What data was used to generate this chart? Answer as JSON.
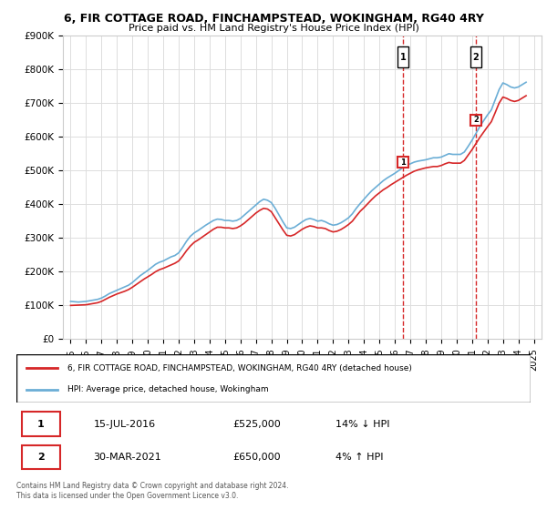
{
  "title": "6, FIR COTTAGE ROAD, FINCHAMPSTEAD, WOKINGHAM, RG40 4RY",
  "subtitle": "Price paid vs. HM Land Registry's House Price Index (HPI)",
  "hpi_color": "#6baed6",
  "price_color": "#d62728",
  "marker_color": "#d62728",
  "dashed_color": "#d62728",
  "ylim": [
    0,
    900000
  ],
  "yticks": [
    0,
    100000,
    200000,
    300000,
    400000,
    500000,
    600000,
    700000,
    800000,
    900000
  ],
  "ytick_labels": [
    "£0",
    "£100K",
    "£200K",
    "£300K",
    "£400K",
    "£500K",
    "£600K",
    "£700K",
    "£800K",
    "£900K"
  ],
  "xlim_start": 1995.0,
  "xlim_end": 2025.5,
  "xtick_years": [
    1995,
    1996,
    1997,
    1998,
    1999,
    2000,
    2001,
    2002,
    2003,
    2004,
    2005,
    2006,
    2007,
    2008,
    2009,
    2010,
    2011,
    2012,
    2013,
    2014,
    2015,
    2016,
    2017,
    2018,
    2019,
    2020,
    2021,
    2022,
    2023,
    2024,
    2025
  ],
  "transaction1_x": 2016.537,
  "transaction1_y": 525000,
  "transaction1_label": "1",
  "transaction1_date": "15-JUL-2016",
  "transaction1_price": "£525,000",
  "transaction1_hpi": "14% ↓ HPI",
  "transaction2_x": 2021.247,
  "transaction2_y": 650000,
  "transaction2_label": "2",
  "transaction2_date": "30-MAR-2021",
  "transaction2_price": "£650,000",
  "transaction2_hpi": "4% ↑ HPI",
  "legend_label_red": "6, FIR COTTAGE ROAD, FINCHAMPSTEAD, WOKINGHAM, RG40 4RY (detached house)",
  "legend_label_blue": "HPI: Average price, detached house, Wokingham",
  "footer": "Contains HM Land Registry data © Crown copyright and database right 2024.\nThis data is licensed under the Open Government Licence v3.0.",
  "hpi_data_x": [
    1995.0,
    1995.25,
    1995.5,
    1995.75,
    1996.0,
    1996.25,
    1996.5,
    1996.75,
    1997.0,
    1997.25,
    1997.5,
    1997.75,
    1998.0,
    1998.25,
    1998.5,
    1998.75,
    1999.0,
    1999.25,
    1999.5,
    1999.75,
    2000.0,
    2000.25,
    2000.5,
    2000.75,
    2001.0,
    2001.25,
    2001.5,
    2001.75,
    2002.0,
    2002.25,
    2002.5,
    2002.75,
    2003.0,
    2003.25,
    2003.5,
    2003.75,
    2004.0,
    2004.25,
    2004.5,
    2004.75,
    2005.0,
    2005.25,
    2005.5,
    2005.75,
    2006.0,
    2006.25,
    2006.5,
    2006.75,
    2007.0,
    2007.25,
    2007.5,
    2007.75,
    2008.0,
    2008.25,
    2008.5,
    2008.75,
    2009.0,
    2009.25,
    2009.5,
    2009.75,
    2010.0,
    2010.25,
    2010.5,
    2010.75,
    2011.0,
    2011.25,
    2011.5,
    2011.75,
    2012.0,
    2012.25,
    2012.5,
    2012.75,
    2013.0,
    2013.25,
    2013.5,
    2013.75,
    2014.0,
    2014.25,
    2014.5,
    2014.75,
    2015.0,
    2015.25,
    2015.5,
    2015.75,
    2016.0,
    2016.25,
    2016.5,
    2016.75,
    2017.0,
    2017.25,
    2017.5,
    2017.75,
    2018.0,
    2018.25,
    2018.5,
    2018.75,
    2019.0,
    2019.25,
    2019.5,
    2019.75,
    2020.0,
    2020.25,
    2020.5,
    2020.75,
    2021.0,
    2021.25,
    2021.5,
    2021.75,
    2022.0,
    2022.25,
    2022.5,
    2022.75,
    2023.0,
    2023.25,
    2023.5,
    2023.75,
    2024.0,
    2024.25,
    2024.5
  ],
  "hpi_data_y": [
    112000,
    111000,
    110000,
    111000,
    112000,
    114000,
    116000,
    118000,
    122000,
    128000,
    135000,
    140000,
    145000,
    150000,
    155000,
    160000,
    168000,
    178000,
    188000,
    196000,
    204000,
    213000,
    222000,
    228000,
    232000,
    238000,
    244000,
    248000,
    256000,
    272000,
    290000,
    305000,
    315000,
    322000,
    330000,
    338000,
    345000,
    352000,
    356000,
    355000,
    352000,
    352000,
    350000,
    352000,
    358000,
    368000,
    378000,
    388000,
    398000,
    408000,
    415000,
    412000,
    405000,
    388000,
    368000,
    348000,
    330000,
    328000,
    332000,
    340000,
    348000,
    355000,
    358000,
    355000,
    350000,
    352000,
    348000,
    342000,
    338000,
    340000,
    345000,
    352000,
    360000,
    372000,
    388000,
    402000,
    415000,
    428000,
    440000,
    450000,
    460000,
    470000,
    478000,
    485000,
    492000,
    500000,
    508000,
    515000,
    520000,
    525000,
    528000,
    530000,
    532000,
    535000,
    538000,
    538000,
    540000,
    545000,
    550000,
    548000,
    548000,
    548000,
    555000,
    572000,
    590000,
    610000,
    630000,
    648000,
    665000,
    680000,
    710000,
    740000,
    760000,
    755000,
    748000,
    745000,
    748000,
    755000,
    762000
  ],
  "price_data_x": [
    1995.0,
    1995.25,
    1995.5,
    1995.75,
    1996.0,
    1996.25,
    1996.5,
    1996.75,
    1997.0,
    1997.25,
    1997.5,
    1997.75,
    1998.0,
    1998.25,
    1998.5,
    1998.75,
    1999.0,
    1999.25,
    1999.5,
    1999.75,
    2000.0,
    2000.25,
    2000.5,
    2000.75,
    2001.0,
    2001.25,
    2001.5,
    2001.75,
    2002.0,
    2002.25,
    2002.5,
    2002.75,
    2003.0,
    2003.25,
    2003.5,
    2003.75,
    2004.0,
    2004.25,
    2004.5,
    2004.75,
    2005.0,
    2005.25,
    2005.5,
    2005.75,
    2006.0,
    2006.25,
    2006.5,
    2006.75,
    2007.0,
    2007.25,
    2007.5,
    2007.75,
    2008.0,
    2008.25,
    2008.5,
    2008.75,
    2009.0,
    2009.25,
    2009.5,
    2009.75,
    2010.0,
    2010.25,
    2010.5,
    2010.75,
    2011.0,
    2011.25,
    2011.5,
    2011.75,
    2012.0,
    2012.25,
    2012.5,
    2012.75,
    2013.0,
    2013.25,
    2013.5,
    2013.75,
    2014.0,
    2014.25,
    2014.5,
    2014.75,
    2015.0,
    2015.25,
    2015.5,
    2015.75,
    2016.0,
    2016.25,
    2016.5,
    2016.75,
    2017.0,
    2017.25,
    2017.5,
    2017.75,
    2018.0,
    2018.25,
    2018.5,
    2018.75,
    2019.0,
    2019.25,
    2019.5,
    2019.75,
    2020.0,
    2020.25,
    2020.5,
    2020.75,
    2021.0,
    2021.25,
    2021.5,
    2021.75,
    2022.0,
    2022.25,
    2022.5,
    2022.75,
    2023.0,
    2023.25,
    2023.5,
    2023.75,
    2024.0,
    2024.25,
    2024.5
  ],
  "price_data_y": [
    100000,
    100500,
    101000,
    101500,
    102000,
    104000,
    106000,
    108000,
    112000,
    118000,
    124000,
    129000,
    134000,
    138000,
    142000,
    147000,
    154000,
    162000,
    170000,
    178000,
    185000,
    192000,
    200000,
    206000,
    210000,
    215000,
    220000,
    225000,
    232000,
    246000,
    262000,
    276000,
    287000,
    294000,
    302000,
    310000,
    318000,
    326000,
    332000,
    332000,
    330000,
    330000,
    328000,
    330000,
    336000,
    344000,
    354000,
    364000,
    374000,
    382000,
    388000,
    386000,
    378000,
    360000,
    342000,
    324000,
    308000,
    306000,
    310000,
    318000,
    326000,
    332000,
    336000,
    334000,
    330000,
    330000,
    328000,
    322000,
    318000,
    320000,
    325000,
    332000,
    340000,
    350000,
    365000,
    379000,
    390000,
    402000,
    414000,
    425000,
    434000,
    443000,
    450000,
    458000,
    465000,
    472000,
    479000,
    486000,
    492000,
    498000,
    502000,
    505000,
    508000,
    510000,
    512000,
    512000,
    515000,
    520000,
    524000,
    522000,
    522000,
    522000,
    530000,
    546000,
    562000,
    580000,
    598000,
    614000,
    630000,
    645000,
    672000,
    700000,
    718000,
    714000,
    708000,
    705000,
    708000,
    715000,
    722000
  ]
}
